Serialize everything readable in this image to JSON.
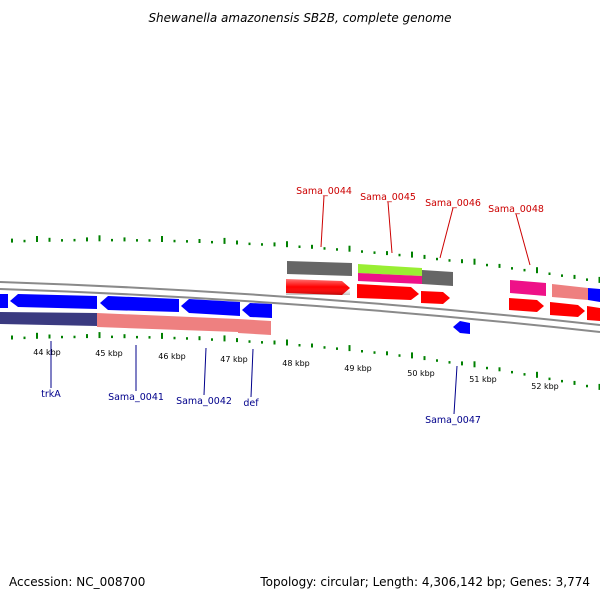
{
  "title": "Shewanella amazonensis SB2B, complete genome",
  "footer": {
    "accession": "Accession: NC_008700",
    "summary": "Topology: circular; Length: 4,306,142 bp; Genes: 3,774"
  },
  "scale_labels": [
    "44 kbp",
    "45 kbp",
    "46 kbp",
    "47 kbp",
    "48 kbp",
    "49 kbp",
    "50 kbp",
    "51 kbp",
    "52 kbp"
  ],
  "gene_labels_top": [
    "Sama_0044",
    "Sama_0045",
    "Sama_0046",
    "Sama_0048"
  ],
  "gene_labels_bottom": [
    "trkA",
    "Sama_0041",
    "Sama_0042",
    "def",
    "Sama_0047"
  ],
  "colors": {
    "forward_cds": "#ff0000",
    "reverse_cds": "#0000ff",
    "backbone": "#888888",
    "gc_tick": "#008000",
    "label_top": "#cc0000",
    "label_bottom": "#00008b",
    "track_gray": "#666666",
    "track_green": "#99ee33",
    "track_magenta": "#ee1188",
    "track_salmon": "#ee8080",
    "track_navy": "#3a3a80"
  }
}
